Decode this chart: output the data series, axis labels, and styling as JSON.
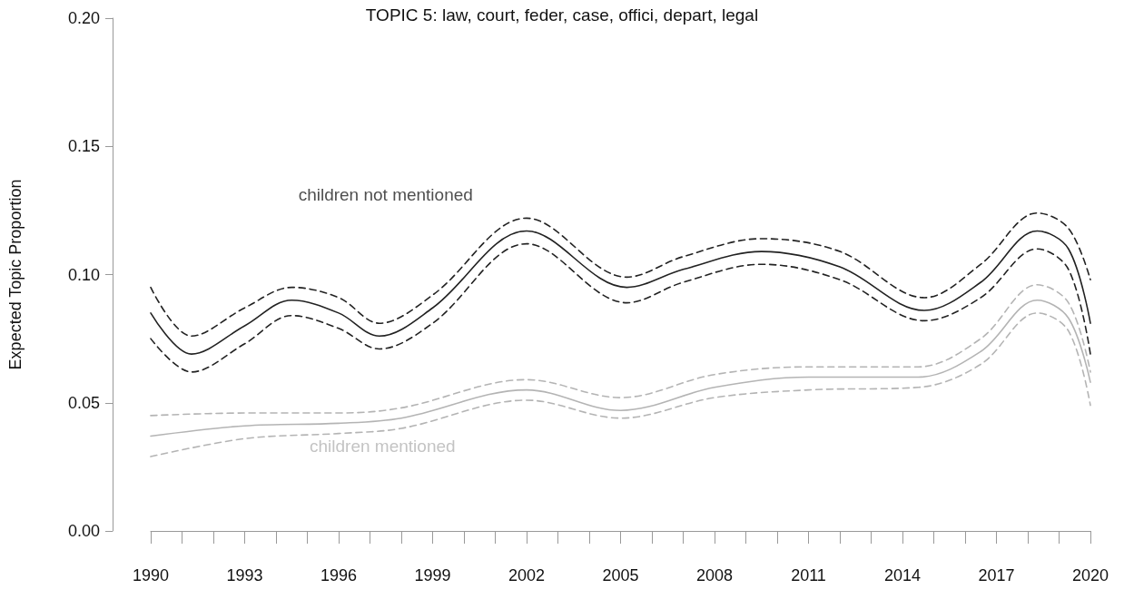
{
  "chart_data": {
    "type": "line",
    "title": "TOPIC 5: law, court, feder, case, offici, depart, legal",
    "ylabel": "Expected Topic Proportion",
    "xlim": [
      1990,
      2020
    ],
    "xticks": [
      1990,
      {
        "value": 1991,
        "label": null
      },
      {
        "value": 1992,
        "label": null
      },
      1993,
      {
        "value": 1994,
        "label": null
      },
      {
        "value": 1995,
        "label": null
      },
      1996,
      {
        "value": 1997,
        "label": null
      },
      {
        "value": 1998,
        "label": null
      },
      1999,
      {
        "value": 2000,
        "label": null
      },
      {
        "value": 2001,
        "label": null
      },
      2002,
      {
        "value": 2003,
        "label": null
      },
      {
        "value": 2004,
        "label": null
      },
      2005,
      {
        "value": 2006,
        "label": null
      },
      {
        "value": 2007,
        "label": null
      },
      2008,
      {
        "value": 2009,
        "label": null
      },
      {
        "value": 2010,
        "label": null
      },
      2011,
      {
        "value": 2012,
        "label": null
      },
      {
        "value": 2013,
        "label": null
      },
      2014,
      {
        "value": 2015,
        "label": null
      },
      {
        "value": 2016,
        "label": null
      },
      2017,
      {
        "value": 2018,
        "label": null
      },
      {
        "value": 2019,
        "label": null
      },
      2020
    ],
    "ylim": [
      0,
      0.2
    ],
    "yticks": [
      {
        "value": 0,
        "label": "0.00"
      },
      {
        "value": 0.05,
        "label": "0.05"
      },
      {
        "value": 0.1,
        "label": "0.10"
      },
      {
        "value": 0.15,
        "label": "0.15"
      },
      {
        "value": 0.2,
        "label": "0.20"
      }
    ],
    "grid": false,
    "legend": false,
    "marker": "none",
    "line_style": "solid",
    "series": [
      {
        "name": "children not mentioned",
        "color": "#222222",
        "x": [
          1990,
          1991.3,
          1993,
          1994.5,
          1996,
          1997.3,
          1999,
          2002,
          2005.2,
          2007,
          2009.5,
          2012,
          2014.7,
          2016.5,
          2018.3,
          2019.3,
          2020
        ],
        "values": [
          0.085,
          0.069,
          0.08,
          0.09,
          0.085,
          0.076,
          0.087,
          0.117,
          0.095,
          0.102,
          0.109,
          0.103,
          0.086,
          0.097,
          0.117,
          0.11,
          0.081
        ]
      },
      {
        "color": "#222222",
        "line_style": "dashed",
        "x": [
          1990,
          1991.3,
          1993,
          1994.5,
          1996,
          1997.3,
          1999,
          2002,
          2005.2,
          2007,
          2009.5,
          2012,
          2014.7,
          2016.5,
          2018.3,
          2019.3,
          2020
        ],
        "values": [
          0.095,
          0.076,
          0.087,
          0.095,
          0.091,
          0.081,
          0.092,
          0.122,
          0.099,
          0.107,
          0.114,
          0.109,
          0.091,
          0.104,
          0.124,
          0.118,
          0.098
        ]
      },
      {
        "color": "#222222",
        "line_style": "dashed",
        "x": [
          1990,
          1991.3,
          1993,
          1994.5,
          1996,
          1997.3,
          1999,
          2002,
          2005.2,
          2007,
          2009.5,
          2012,
          2014.7,
          2016.5,
          2018.3,
          2019.3,
          2020
        ],
        "values": [
          0.075,
          0.062,
          0.073,
          0.084,
          0.079,
          0.071,
          0.081,
          0.112,
          0.089,
          0.097,
          0.104,
          0.098,
          0.082,
          0.091,
          0.11,
          0.102,
          0.069
        ]
      },
      {
        "name": "children mentioned",
        "color": "#b4b4b4",
        "x": [
          1990,
          1993,
          1996,
          1998,
          2002,
          2005,
          2008,
          2011,
          2014.5,
          2016.5,
          2018.3,
          2019.3,
          2020
        ],
        "values": [
          0.037,
          0.041,
          0.042,
          0.044,
          0.055,
          0.047,
          0.056,
          0.06,
          0.06,
          0.07,
          0.09,
          0.083,
          0.058
        ]
      },
      {
        "color": "#b4b4b4",
        "line_style": "dashed",
        "x": [
          1990,
          1993,
          1996,
          1998,
          2002,
          2005,
          2008,
          2011,
          2014.5,
          2016.5,
          2018.3,
          2019.3,
          2020
        ],
        "values": [
          0.045,
          0.046,
          0.046,
          0.048,
          0.059,
          0.052,
          0.061,
          0.064,
          0.064,
          0.075,
          0.096,
          0.089,
          0.062
        ]
      },
      {
        "color": "#b4b4b4",
        "line_style": "dashed",
        "x": [
          1990,
          1993,
          1996,
          1998,
          2002,
          2005,
          2008,
          2011,
          2014.5,
          2016.5,
          2018.3,
          2019.3,
          2020
        ],
        "values": [
          0.029,
          0.036,
          0.038,
          0.04,
          0.051,
          0.044,
          0.052,
          0.055,
          0.056,
          0.065,
          0.085,
          0.078,
          0.049
        ]
      }
    ]
  }
}
